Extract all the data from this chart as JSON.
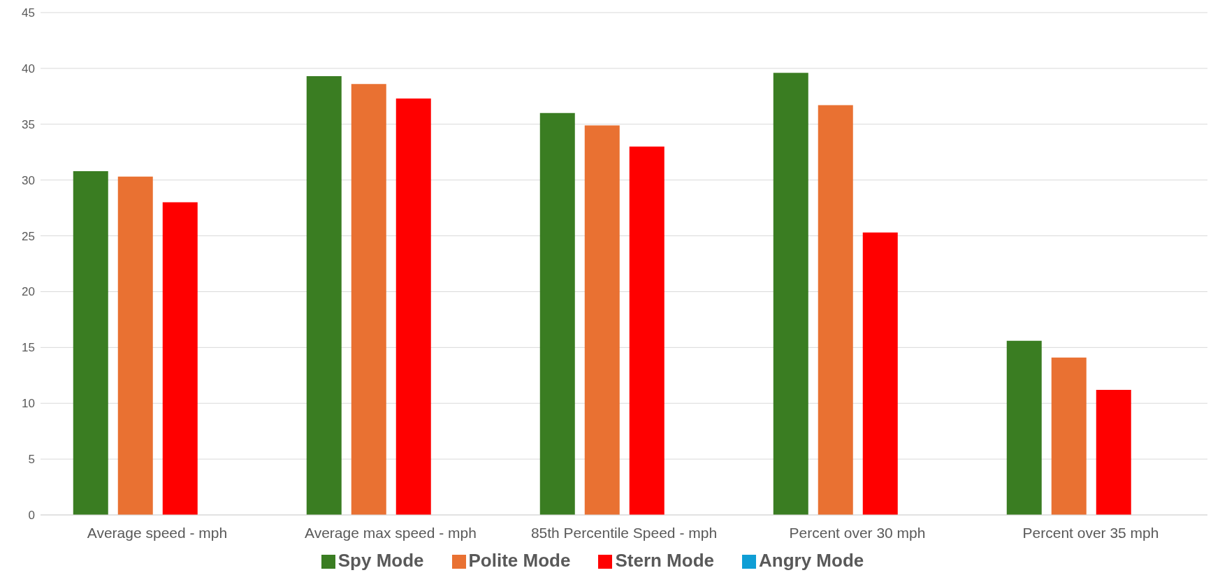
{
  "chart_data": {
    "type": "bar",
    "categories": [
      "Average speed - mph",
      "Average max speed - mph",
      "85th Percentile Speed - mph",
      "Percent over 30 mph",
      "Percent over 35 mph"
    ],
    "series": [
      {
        "name": "Spy Mode",
        "color": "#3a7d22",
        "values": [
          30.8,
          39.3,
          36.0,
          39.6,
          15.6
        ]
      },
      {
        "name": "Polite Mode",
        "color": "#e97132",
        "values": [
          30.3,
          38.6,
          34.9,
          36.7,
          14.1
        ]
      },
      {
        "name": "Stern Mode",
        "color": "#ff0000",
        "values": [
          28.0,
          37.3,
          33.0,
          25.3,
          11.2
        ]
      },
      {
        "name": "Angry Mode",
        "color": "#0f9ed5",
        "values": [
          null,
          null,
          null,
          null,
          null
        ]
      }
    ],
    "ylim": [
      0,
      45
    ],
    "yticks": [
      0,
      5,
      10,
      15,
      20,
      25,
      30,
      35,
      40,
      45
    ],
    "grid": "y",
    "legend": "bottom"
  }
}
